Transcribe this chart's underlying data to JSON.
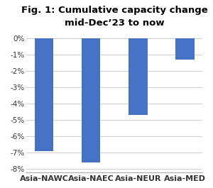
{
  "categories": [
    "Asia-NAWC",
    "Asia-NAEC",
    "Asia-NEUR",
    "Asia-MED"
  ],
  "values": [
    -6.9,
    -7.6,
    -4.7,
    -1.3
  ],
  "bar_color": "#4472C4",
  "title": "Fig. 1: Cumulative capacity change\nmid-Dec’23 to now",
  "ylim": [
    -8.2,
    0.4
  ],
  "yticks": [
    0,
    -1,
    -2,
    -3,
    -4,
    -5,
    -6,
    -7,
    -8
  ],
  "ytick_labels": [
    "0%",
    "-1%",
    "-2%",
    "-3%",
    "-4%",
    "-5%",
    "-6%",
    "-7%",
    "-8%"
  ],
  "background_color": "#ffffff",
  "grid_color": "#d0d0d0",
  "title_fontsize": 9.5,
  "tick_fontsize": 7.5,
  "xlabel_fontsize": 8.0,
  "bar_width": 0.4
}
